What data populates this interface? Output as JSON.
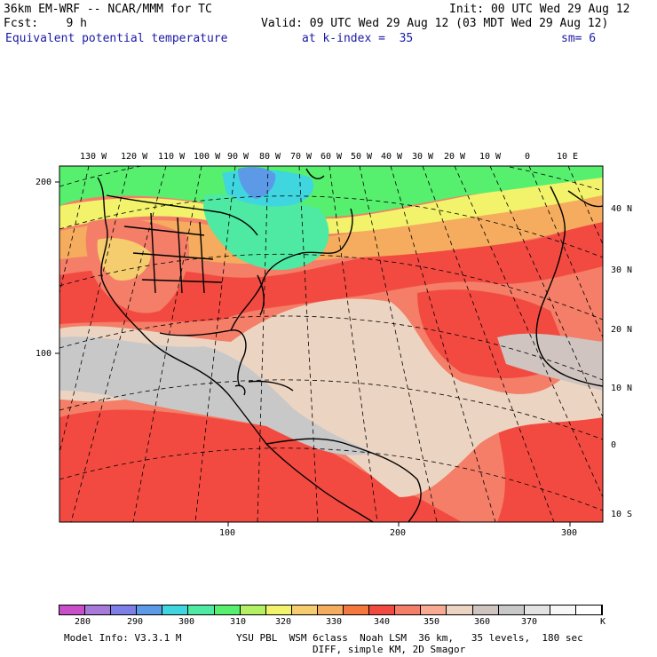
{
  "header": {
    "model": "36km EM-WRF -- NCAR/MMM for TC",
    "init": "Init: 00 UTC Wed 29 Aug 12",
    "fcst": "Fcst:    9 h",
    "valid": "Valid: 09 UTC Wed 29 Aug 12 (03 MDT Wed 29 Aug 12)",
    "field": "Equivalent potential temperature",
    "kindex": "at k-index =  35",
    "sm": "sm= 6"
  },
  "map": {
    "lon_labels": [
      "130 W",
      "120 W",
      "110 W",
      "100 W",
      "90 W",
      "80 W",
      "70 W",
      "60 W",
      "50 W",
      "40 W",
      "30 W",
      "20 W",
      "10 W",
      "0",
      "10 E"
    ],
    "lat_labels": [
      "40 N",
      "30 N",
      "20 N",
      "10 N",
      "0",
      "10 S"
    ],
    "left_ticks": [
      "200",
      "100"
    ],
    "bottom_ticks": [
      "100",
      "200",
      "300"
    ]
  },
  "legend": {
    "colors": [
      "#c94fc9",
      "#a779d9",
      "#7e7ee8",
      "#5c9ae8",
      "#3fd6e0",
      "#4ee9a2",
      "#56f06e",
      "#b3f063",
      "#f2f26b",
      "#f6cd6e",
      "#f6ac5e",
      "#f4783e",
      "#f24a41",
      "#f47e68",
      "#f8ab92",
      "#ecd4c2",
      "#cfc4c0",
      "#c8c8c8",
      "#e3e3e3",
      "#f7f7f7",
      "#ffffff"
    ],
    "labels": [
      "280",
      "290",
      "300",
      "310",
      "320",
      "330",
      "340",
      "350",
      "360",
      "370"
    ],
    "unit": "K"
  },
  "footer": {
    "line1_left": "Model Info: V3.3.1 M",
    "line1_right": "YSU PBL  WSM 6class  Noah LSM  36 km,   35 levels,  180 sec",
    "line2": "DIFF, simple KM, 2D Smagor"
  }
}
